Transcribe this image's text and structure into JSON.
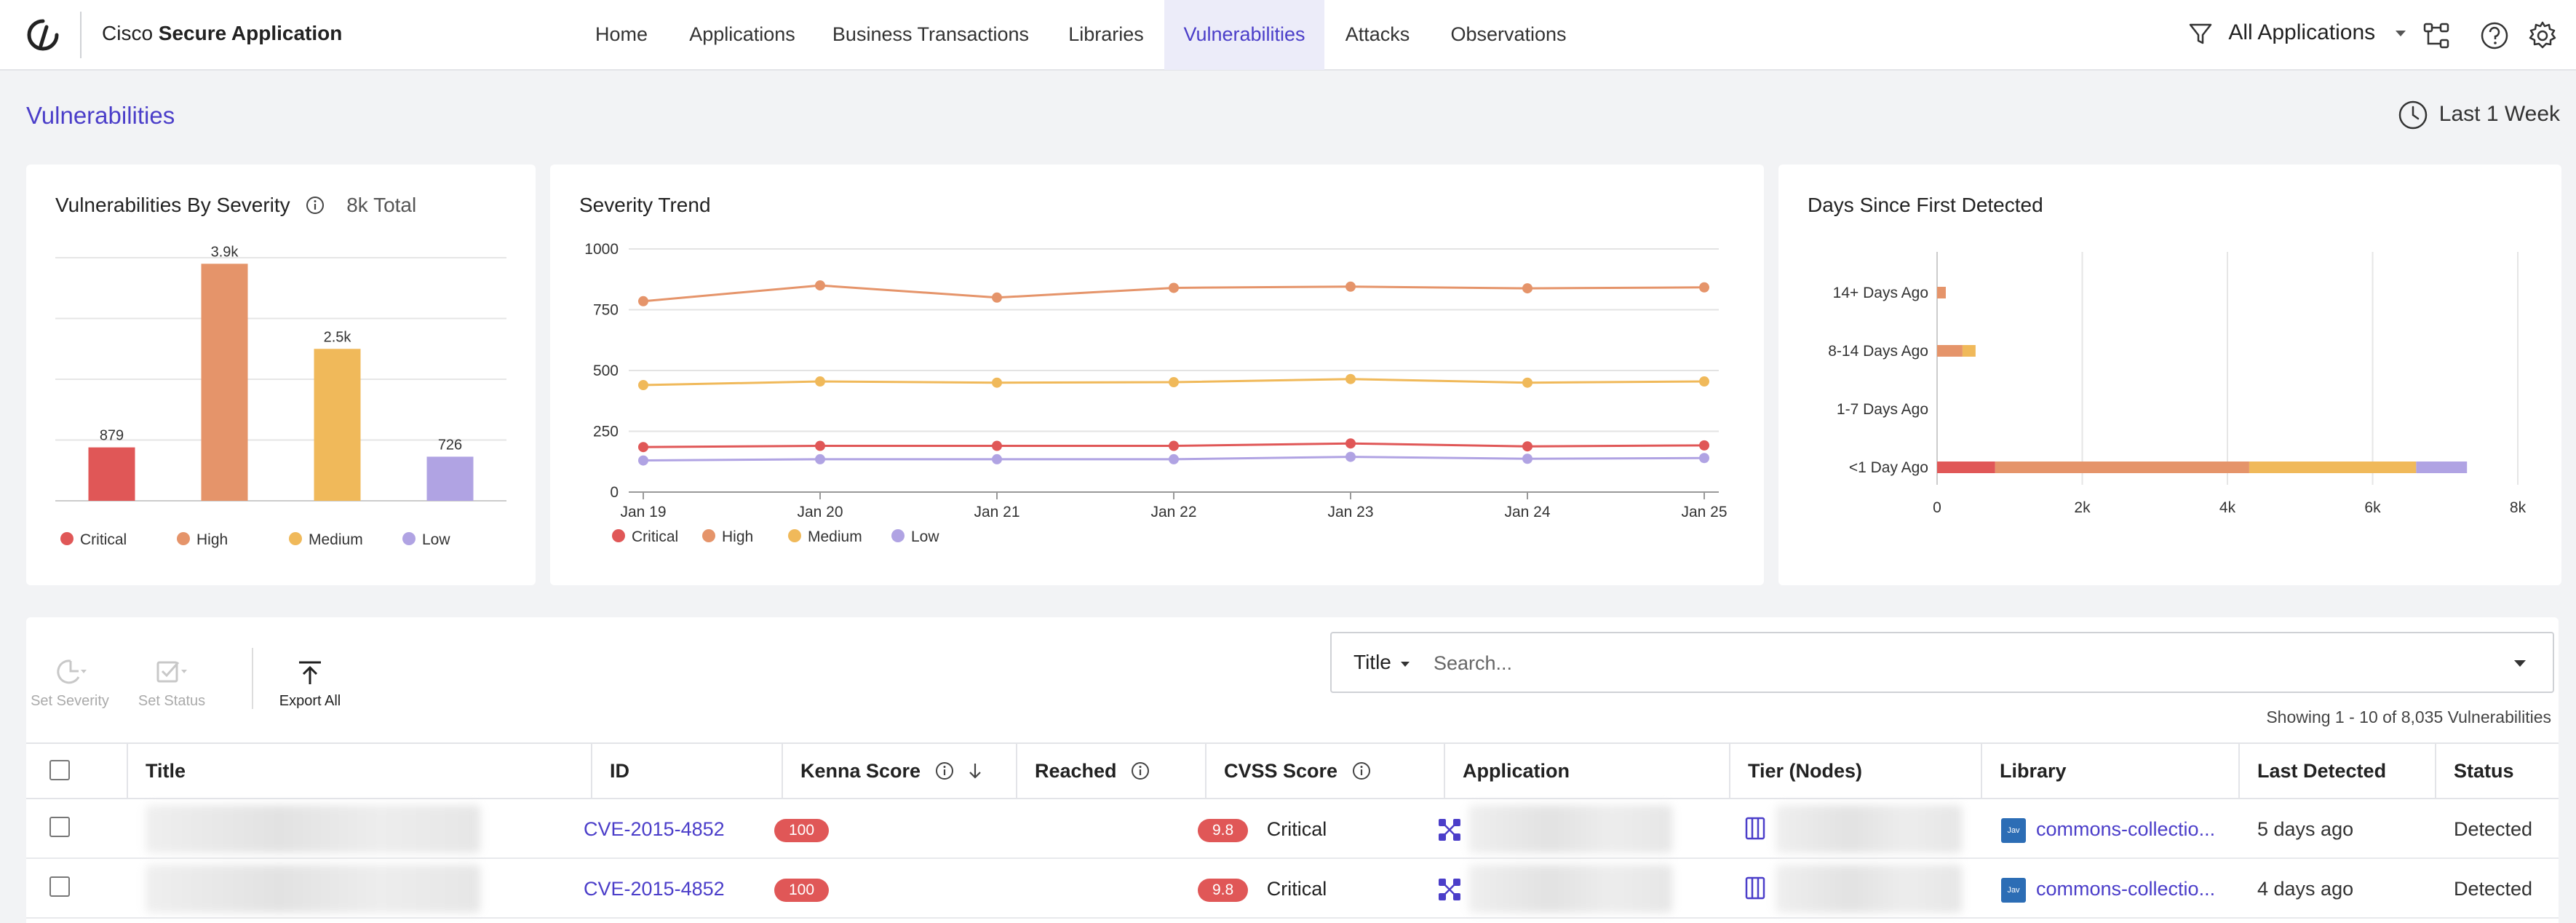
{
  "header": {
    "brand_light": "Cisco",
    "brand_bold": "Secure Application",
    "nav": [
      {
        "label": "Home"
      },
      {
        "label": "Applications"
      },
      {
        "label": "Business Transactions"
      },
      {
        "label": "Libraries"
      },
      {
        "label": "Vulnerabilities",
        "active": true
      },
      {
        "label": "Attacks"
      },
      {
        "label": "Observations"
      }
    ],
    "app_filter": "All Applications",
    "icons": [
      "funnel-icon",
      "topology-icon",
      "help-icon",
      "gear-icon"
    ]
  },
  "page": {
    "title": "Vulnerabilities",
    "time_range": "Last 1 Week"
  },
  "colors": {
    "critical": "#e05757",
    "high": "#e5946a",
    "medium": "#f0b95a",
    "low": "#b0a3e3",
    "accent": "#4b3ec9"
  },
  "cards": {
    "severity": {
      "title": "Vulnerabilities By Severity",
      "total": "8k Total"
    },
    "trend": {
      "title": "Severity Trend"
    },
    "days": {
      "title": "Days Since First Detected"
    }
  },
  "chart_data": [
    {
      "type": "bar",
      "title": "Vulnerabilities By Severity",
      "categories": [
        "Critical",
        "High",
        "Medium",
        "Low"
      ],
      "values": [
        879,
        3900,
        2500,
        726
      ],
      "data_labels": [
        "879",
        "3.9k",
        "2.5k",
        "726"
      ],
      "ylim": [
        0,
        4000
      ],
      "grid": true,
      "legend": [
        "Critical",
        "High",
        "Medium",
        "Low"
      ],
      "legend_position": "bottom"
    },
    {
      "type": "line",
      "title": "Severity Trend",
      "x": [
        "Jan 19",
        "Jan 20",
        "Jan 21",
        "Jan 22",
        "Jan 23",
        "Jan 24",
        "Jan 25"
      ],
      "yticks": [
        "0",
        "250",
        "500",
        "750",
        "1000"
      ],
      "ylim": [
        0,
        1000
      ],
      "series": [
        {
          "name": "Critical",
          "values": [
            185,
            190,
            190,
            190,
            200,
            188,
            192
          ]
        },
        {
          "name": "High",
          "values": [
            785,
            850,
            800,
            840,
            845,
            838,
            842
          ]
        },
        {
          "name": "Medium",
          "values": [
            440,
            455,
            450,
            452,
            465,
            450,
            455
          ]
        },
        {
          "name": "Low",
          "values": [
            130,
            135,
            135,
            135,
            145,
            137,
            140
          ]
        }
      ],
      "grid": true,
      "legend_position": "bottom"
    },
    {
      "type": "bar",
      "orientation": "horizontal",
      "stacked": true,
      "title": "Days Since First Detected",
      "categories": [
        "14+ Days Ago",
        "8-14 Days Ago",
        "1-7 Days Ago",
        "<1 Day Ago"
      ],
      "xticks": [
        "0",
        "2k",
        "4k",
        "6k",
        "8k"
      ],
      "xlim": [
        0,
        8000
      ],
      "series": [
        {
          "name": "Critical",
          "values": [
            0,
            0,
            0,
            800
          ]
        },
        {
          "name": "High",
          "values": [
            120,
            350,
            0,
            3500
          ]
        },
        {
          "name": "Medium",
          "values": [
            0,
            180,
            0,
            2300
          ]
        },
        {
          "name": "Low",
          "values": [
            0,
            0,
            0,
            700
          ]
        }
      ],
      "grid": true
    }
  ],
  "toolbar": {
    "set_severity": "Set Severity",
    "set_status": "Set Status",
    "export_all": "Export All"
  },
  "search": {
    "field": "Title",
    "placeholder": "Search..."
  },
  "table": {
    "showing": "Showing 1 - 10 of 8,035 Vulnerabilities",
    "columns": [
      "Title",
      "ID",
      "Kenna Score",
      "Reached",
      "CVSS Score",
      "Application",
      "Tier (Nodes)",
      "Library",
      "Last Detected",
      "Status"
    ],
    "rows": [
      {
        "id": "CVE-2015-4852",
        "kenna": "100",
        "cvss": "9.8",
        "cvss_label": "Critical",
        "library_badge": "Jav",
        "library": "commons-collectio...",
        "last_detected": "5 days ago",
        "status": "Detected"
      },
      {
        "id": "CVE-2015-4852",
        "kenna": "100",
        "cvss": "9.8",
        "cvss_label": "Critical",
        "library_badge": "Jav",
        "library": "commons-collectio...",
        "last_detected": "4 days ago",
        "status": "Detected"
      }
    ]
  }
}
